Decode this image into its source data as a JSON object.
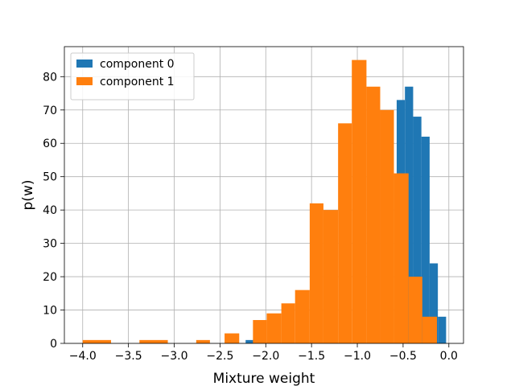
{
  "chart_data": {
    "type": "bar",
    "title": "",
    "xlabel": "Mixture weight",
    "ylabel": "p(w)",
    "xlim": [
      -4.2,
      0.16
    ],
    "ylim": [
      0,
      89
    ],
    "grid": true,
    "legend_position": "top-left",
    "x_ticks": [
      -4.0,
      -3.5,
      -3.0,
      -2.5,
      -2.0,
      -1.5,
      -1.0,
      -0.5,
      0.0
    ],
    "x_tick_labels": [
      "−4.0",
      "−3.5",
      "−3.0",
      "−2.5",
      "−2.0",
      "−1.5",
      "−1.0",
      "−0.5",
      "0.0"
    ],
    "y_ticks": [
      0,
      10,
      20,
      30,
      40,
      50,
      60,
      70,
      80
    ],
    "y_tick_labels": [
      "0",
      "10",
      "20",
      "30",
      "40",
      "50",
      "60",
      "70",
      "80"
    ],
    "series": [
      {
        "name": "component 0",
        "color": "#1f77b4",
        "bins": [
          {
            "x0": -2.36,
            "x1": -2.22,
            "y": 0
          },
          {
            "x0": -2.22,
            "x1": -2.08,
            "y": 1
          },
          {
            "x0": -0.57,
            "x1": -0.48,
            "y": 73
          },
          {
            "x0": -0.48,
            "x1": -0.39,
            "y": 77
          },
          {
            "x0": -0.39,
            "x1": -0.3,
            "y": 68
          },
          {
            "x0": -0.3,
            "x1": -0.21,
            "y": 62
          },
          {
            "x0": -0.21,
            "x1": -0.12,
            "y": 24
          },
          {
            "x0": -0.12,
            "x1": -0.03,
            "y": 8
          }
        ]
      },
      {
        "name": "component 1",
        "color": "#ff7f0e",
        "bins": [
          {
            "x0": -4.0,
            "x1": -3.69,
            "y": 1
          },
          {
            "x0": -3.38,
            "x1": -3.07,
            "y": 1
          },
          {
            "x0": -2.76,
            "x1": -2.61,
            "y": 1
          },
          {
            "x0": -2.45,
            "x1": -2.29,
            "y": 3
          },
          {
            "x0": -2.14,
            "x1": -1.99,
            "y": 7
          },
          {
            "x0": -1.99,
            "x1": -1.83,
            "y": 9
          },
          {
            "x0": -1.83,
            "x1": -1.68,
            "y": 12
          },
          {
            "x0": -1.68,
            "x1": -1.52,
            "y": 16
          },
          {
            "x0": -1.52,
            "x1": -1.37,
            "y": 42
          },
          {
            "x0": -1.37,
            "x1": -1.21,
            "y": 40
          },
          {
            "x0": -1.21,
            "x1": -1.06,
            "y": 66
          },
          {
            "x0": -1.06,
            "x1": -0.9,
            "y": 85
          },
          {
            "x0": -0.9,
            "x1": -0.75,
            "y": 77
          },
          {
            "x0": -0.75,
            "x1": -0.6,
            "y": 70
          },
          {
            "x0": -0.6,
            "x1": -0.44,
            "y": 51
          },
          {
            "x0": -0.44,
            "x1": -0.29,
            "y": 20
          },
          {
            "x0": -0.29,
            "x1": -0.13,
            "y": 8
          }
        ]
      }
    ]
  }
}
